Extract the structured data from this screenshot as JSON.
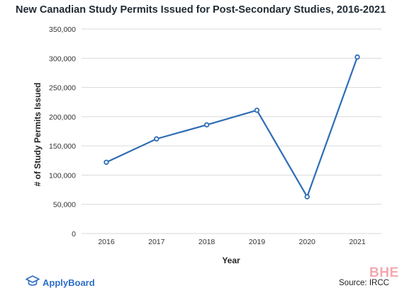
{
  "chart_data": {
    "type": "line",
    "title": "New Canadian Study Permits Issued for Post-Secondary Studies, 2016-2021",
    "xlabel": "Year",
    "ylabel": "# of Study Permits Issued",
    "categories": [
      "2016",
      "2017",
      "2018",
      "2019",
      "2020",
      "2021"
    ],
    "values": [
      122000,
      162000,
      186000,
      211000,
      63000,
      302000
    ],
    "ylim": [
      0,
      350000
    ],
    "yticks": [
      0,
      50000,
      100000,
      150000,
      200000,
      250000,
      300000,
      350000
    ],
    "ytick_labels": [
      "0",
      "50,000",
      "100,000",
      "150,000",
      "200,000",
      "250,000",
      "300,000",
      "350,000"
    ],
    "grid": true,
    "legend": false
  },
  "colors": {
    "line": "#2e6db4",
    "grid": "#d9d9d9",
    "brand": "#2d6ec6",
    "watermark": "#f2a9b1"
  },
  "footer": {
    "brand_name": "ApplyBoard",
    "brand_icon": "graduation-cap-icon",
    "watermark": "BHE",
    "source": "Source: IRCC"
  }
}
